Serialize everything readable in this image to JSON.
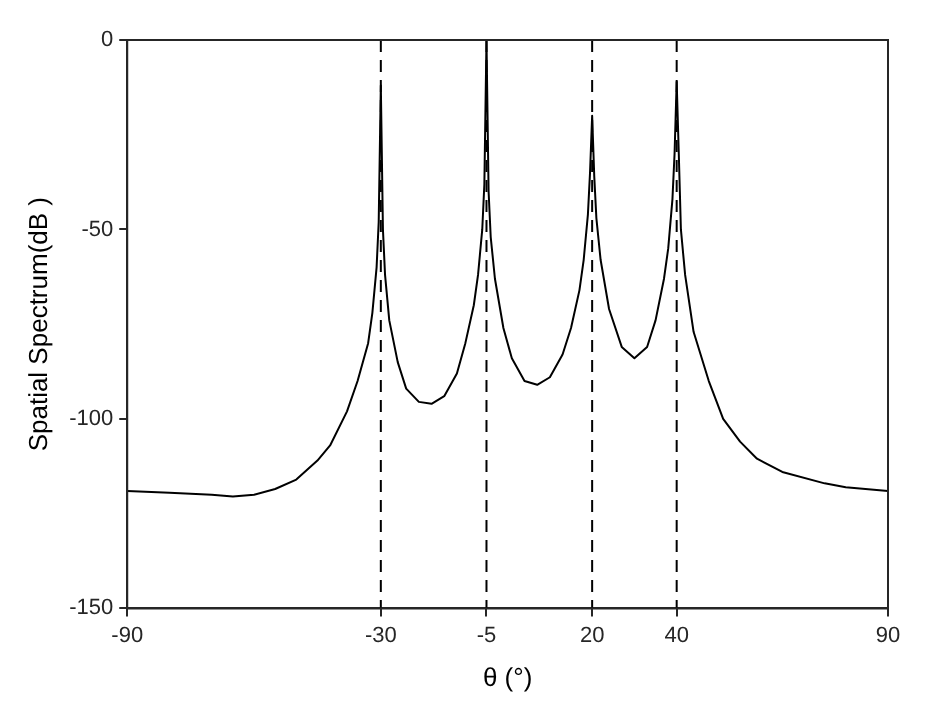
{
  "chart_data": {
    "type": "line",
    "xlabel": "θ (°)",
    "ylabel": "Spatial Spectrum(dB )",
    "xlim": [
      -90,
      90
    ],
    "xticks": [
      -90,
      -30,
      -5,
      20,
      40,
      90
    ],
    "ylim": [
      -150,
      0
    ],
    "yticks": [
      -150,
      -100,
      -50,
      0
    ],
    "grid": false,
    "legend": false,
    "marker": "none",
    "line_style": "solid",
    "x": [
      -90,
      -80,
      -70,
      -65,
      -60,
      -55,
      -50,
      -45,
      -42,
      -38,
      -35.5,
      -33,
      -32,
      -31,
      -30.5,
      -30,
      -29.5,
      -29,
      -28,
      -26,
      -24,
      -21,
      -18,
      -15,
      -12,
      -10,
      -8,
      -7,
      -6,
      -5.5,
      -5,
      -4.5,
      -4,
      -3,
      -1,
      1,
      4,
      7,
      10,
      13,
      15,
      17,
      18,
      19,
      19.5,
      20,
      20.5,
      21,
      22,
      24,
      27,
      30,
      33,
      35,
      37,
      38,
      39,
      39.5,
      40,
      40.5,
      41,
      42,
      44,
      47.6,
      51,
      55,
      59,
      65,
      75,
      80,
      90
    ],
    "series": [
      {
        "color": "#000000",
        "values": [
          -119,
          -119.5,
          -120,
          -120.5,
          -120,
          -118.5,
          -116,
          -111,
          -107,
          -98,
          -90,
          -80,
          -72,
          -60,
          -48,
          -12,
          -50,
          -62,
          -74,
          -85,
          -92,
          -95.5,
          -96,
          -94,
          -88,
          -80,
          -70,
          -62,
          -50,
          -38,
          0,
          -40,
          -52,
          -63,
          -76,
          -84,
          -90,
          -91,
          -89,
          -83,
          -76,
          -66,
          -58,
          -46,
          -35,
          -20,
          -36,
          -47,
          -58,
          -71,
          -81,
          -84,
          -81,
          -74,
          -63,
          -55,
          -42,
          -30,
          -11,
          -30,
          -50,
          -62,
          -77,
          -90,
          -100,
          -106,
          -110.5,
          -114,
          -117,
          -118,
          -119
        ]
      }
    ],
    "ref_lines": [
      {
        "axis": "x",
        "value": -30,
        "color": "#000000",
        "line_style": "dashed"
      },
      {
        "axis": "x",
        "value": -5,
        "color": "#000000",
        "line_style": "dashed"
      },
      {
        "axis": "x",
        "value": 20,
        "color": "#000000",
        "line_style": "dashed"
      },
      {
        "axis": "x",
        "value": 40,
        "color": "#000000",
        "line_style": "dashed"
      }
    ]
  }
}
